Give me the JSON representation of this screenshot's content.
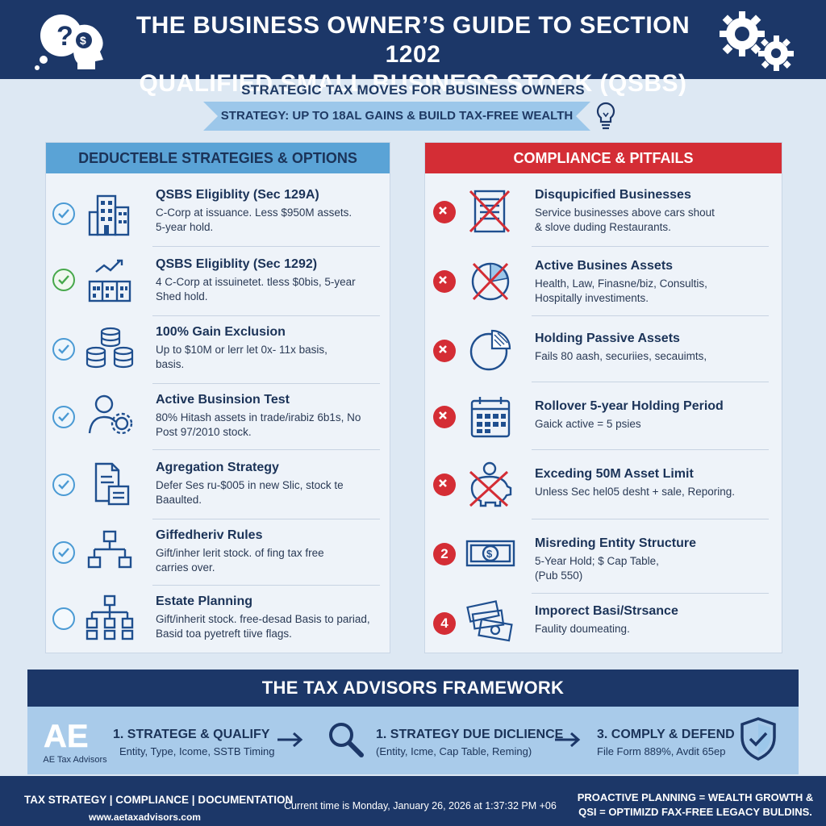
{
  "header": {
    "title_line1": "THE BUSINESS OWNER’S GUIDE TO SECTION 1202",
    "title_line2": "QUALIFIED SMALL BUSINESS STOCK (QSBS)"
  },
  "subtitle": "STRATEGIC TAX MOVES FOR BUSINESS OWNERS",
  "ribbon": "STRATEGY: UP TO 18AL GAINS & BUILD TAX-FREE WEALTH",
  "left_panel": {
    "heading": "DEDUCTEBLE STRATEGIES & OPTIONS",
    "items": [
      {
        "title": "QSBS Eligiblity (Sec 129A)",
        "desc1": "C-Corp at issuance. Less $950M assets.",
        "desc2": "5-year hold.",
        "status": "check",
        "icon": "office-building-icon"
      },
      {
        "title": "QSBS Eligiblity (Sec 1292)",
        "desc1": "4 C-Corp at issuinetet. tless $0bis, 5-year",
        "desc2": "Shed hold.",
        "status": "check-green",
        "icon": "growth-building-icon"
      },
      {
        "title": "100% Gain Exclusion",
        "desc1": "Up to $10M or lerr let 0x- 11x basis,",
        "desc2": "basis.",
        "status": "check",
        "icon": "coin-stacks-icon"
      },
      {
        "title": "Active Businsion Test",
        "desc1": "80% Hitash assets in trade/irabiz 6b1s, No",
        "desc2": "Post 97/2010 stock.",
        "status": "check",
        "icon": "person-gear-icon"
      },
      {
        "title": "Agregation Strategy",
        "desc1": "Defer Ses ru-$005 in new Slic, stock te",
        "desc2": "Baaulted.",
        "status": "check",
        "icon": "documents-icon"
      },
      {
        "title": "Giffedheriv Rules",
        "desc1": "Gift/inher lerit stock. of fing tax free",
        "desc2": "carries over.",
        "status": "check",
        "icon": "org-chart-icon"
      },
      {
        "title": "Estate Planning",
        "desc1": "Gift/inherit stock. free-desad Basis to pariad,",
        "desc2": "Basid toa pyetreft tiive flags.",
        "status": "empty",
        "icon": "hierarchy-icon"
      }
    ]
  },
  "right_panel": {
    "heading": "COMPLIANCE & PITFAILS",
    "items": [
      {
        "title": "Disqupicified Businesses",
        "desc1": "Service businesses above cars shout",
        "desc2": "& slove duding Restaurants.",
        "status": "x",
        "icon": "crossed-document-icon"
      },
      {
        "title": "Active Busines Assets",
        "desc1": "Health, Law, Finasne/biz, Consultis,",
        "desc2": "Hospitally investiments.",
        "status": "x",
        "icon": "crossed-chart-icon"
      },
      {
        "title": "Holding Passive Assets",
        "desc1": "Fails 80 aash, securiies, secauimts,",
        "desc2": "",
        "status": "x",
        "icon": "pie-chart-icon"
      },
      {
        "title": "Rollover 5-year Holding Period",
        "desc1": "Gaick active = 5 psies",
        "desc2": "",
        "status": "x",
        "icon": "calendar-icon"
      },
      {
        "title": "Exceding 50M Asset Limit",
        "desc1": "Unless Sec hel05 desht + sale, Reporing.",
        "desc2": "",
        "status": "x",
        "icon": "crossed-piggy-bank-icon"
      },
      {
        "title": "Misreding Entity Structure",
        "desc1": "5-Year Hold; $ Cap Table,",
        "desc2": "(Pub 550)",
        "status": "num",
        "num": "2",
        "icon": "banknote-icon"
      },
      {
        "title": "Imporect Basi/Strsance",
        "desc1": "Faulity doumeating.",
        "desc2": "",
        "status": "num",
        "num": "4",
        "icon": "cash-stack-icon"
      }
    ]
  },
  "framework": {
    "heading": "THE TAX ADVISORS FRAMEWORK",
    "logo_mark": "AE",
    "logo_text": "AE Tax Advisors",
    "steps": [
      {
        "title": "1. STRATEGE & QUALIFY",
        "desc": "Entity, Type, Icome, SSTB Timing"
      },
      {
        "title": "1. STRATEGY  DUE DICLIENCE",
        "desc": "(Entity, Icme, Cap Table, Reming)"
      },
      {
        "title": "3. COMPLY & DEFEND",
        "desc": "File Form 889%, Avdit 65ep"
      }
    ]
  },
  "footer": {
    "left": "TAX STRATEGY | COMPLIANCE | DOCUMENTATION",
    "url": "www.aetaxadvisors.com",
    "center": "Current time is Monday, January 26, 2026 at 1:37:32 PM +06",
    "right_line1": "PROACTIVE PLANNING = WEALTH GROWTH &",
    "right_line2": "QSI = OPTIMIZD FAX-FREE LEGACY BULDINS."
  },
  "colors": {
    "navy": "#1c3768",
    "sky_blue": "#5aa3d6",
    "alert_red": "#d42d35",
    "check_green": "#47a84b",
    "light_bg": "#dde8f3"
  }
}
